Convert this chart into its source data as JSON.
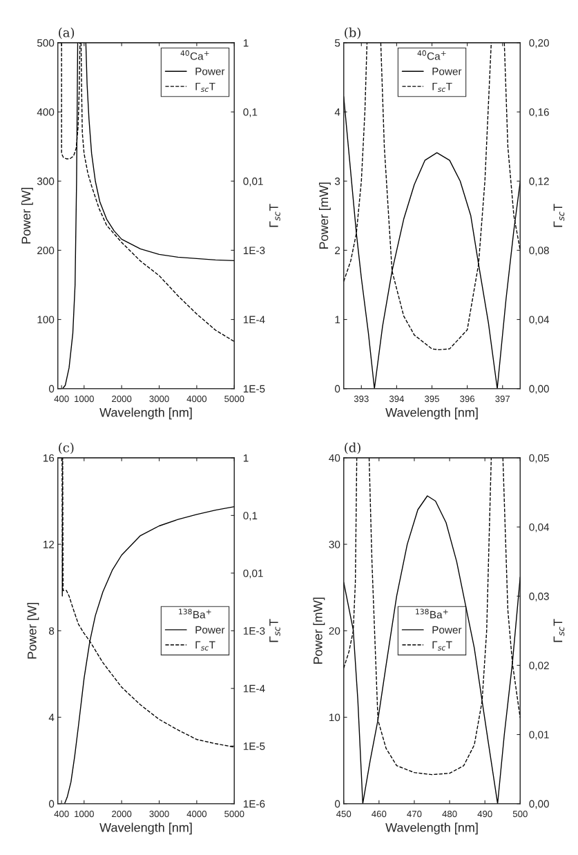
{
  "chart_data": [
    {
      "type": "line",
      "title": "(a)",
      "xlabel": "Wavelength [nm]",
      "ylabel": "Power [W]",
      "y2label": "Γ$_{sc}$T",
      "legend_title": "$^{40}$Ca$^{+}$",
      "legend": "top right",
      "log": "y2",
      "xlim": [
        300,
        5000
      ],
      "xticks": [
        400,
        1000,
        2000,
        3000,
        4000,
        5000
      ],
      "ylim": [
        0,
        500
      ],
      "yticks": [
        0,
        100,
        200,
        300,
        400,
        500
      ],
      "y2lim": [
        1e-05,
        1
      ],
      "y2ticks": [
        {
          "value": 1e-05,
          "label": "1E-5"
        },
        {
          "value": 0.0001,
          "label": "1E-4"
        },
        {
          "value": 0.001,
          "label": "1E-3"
        },
        {
          "value": 0.01,
          "label": "0,01"
        },
        {
          "value": 0.1,
          "label": "0,1"
        },
        1
      ],
      "series": [
        {
          "name": "Power",
          "color": "#000000",
          "line_style": "solid",
          "x": [
            430,
            500,
            600,
            700,
            760,
            800,
            830,
            900,
            1047,
            1080,
            1130,
            1200,
            1300,
            1420,
            1600,
            1800,
            2000,
            2500,
            3000,
            3500,
            4000,
            4500,
            5000
          ],
          "values": [
            0,
            5,
            30,
            80,
            150,
            300,
            500,
            null,
            500,
            440,
            390,
            340,
            300,
            270,
            245,
            228,
            216,
            202,
            194,
            190,
            188,
            186,
            185
          ]
        },
        {
          "name": "Γ$_{sc}$T",
          "color": "#000000",
          "line_style": "dashed",
          "axis": "y2",
          "x": [
            400,
            400,
            450,
            530,
            620,
            720,
            790,
            840,
            870,
            890,
            905,
            920,
            935,
            953,
            1000,
            1100,
            1200,
            1400,
            1600,
            2000,
            2500,
            3000,
            3500,
            4000,
            4500,
            5000
          ],
          "values": [
            1,
            0.025,
            0.022,
            0.021,
            0.021,
            0.023,
            0.03,
            0.06,
            0.2,
            1,
            null,
            1,
            0.2,
            0.05,
            0.025,
            0.013,
            0.0085,
            0.004,
            0.0023,
            0.0013,
            0.0007,
            0.00043,
            0.00022,
            0.00012,
            7e-05,
            4.8e-05
          ]
        }
      ]
    },
    {
      "type": "line",
      "title": "(b)",
      "xlabel": "Wavelength [nm]",
      "ylabel": "Power [mW]",
      "y2label": "Γ$_{sc}$T",
      "legend_title": "$^{40}$Ca$^{+}$",
      "legend": "top",
      "xlim": [
        392.5,
        397.5
      ],
      "xticks": [
        393,
        394,
        395,
        396,
        397
      ],
      "ylim": [
        0,
        5
      ],
      "yticks": [
        0,
        1,
        2,
        3,
        4,
        5
      ],
      "y2lim": [
        0,
        0.2
      ],
      "y2ticks": [
        {
          "value": 0,
          "label": "0,00"
        },
        {
          "value": 0.04,
          "label": "0,04"
        },
        {
          "value": 0.08,
          "label": "0,08"
        },
        {
          "value": 0.12,
          "label": "0,12"
        },
        {
          "value": 0.16,
          "label": "0,16"
        },
        {
          "value": 0.2,
          "label": "0,20"
        }
      ],
      "series": [
        {
          "name": "Power",
          "color": "#000000",
          "line_style": "solid",
          "x": [
            392.5,
            392.86,
            393.0,
            393.2,
            393.37,
            393.6,
            393.87,
            394.2,
            394.5,
            394.8,
            395.14,
            395.5,
            395.8,
            396.1,
            396.32,
            396.6,
            396.85,
            397.1,
            397.32,
            397.5
          ],
          "values": [
            4.22,
            2.24,
            1.6,
            0.8,
            0,
            0.9,
            1.7,
            2.45,
            2.95,
            3.3,
            3.41,
            3.3,
            3.0,
            2.5,
            1.8,
            0.95,
            0,
            1.3,
            2.29,
            2.99
          ]
        },
        {
          "name": "Γ$_{sc}$T",
          "color": "#000000",
          "line_style": "dashed",
          "axis": "y2",
          "x": [
            392.5,
            392.7,
            392.86,
            393.0,
            393.1,
            393.16,
            393.35,
            393.55,
            393.65,
            393.87,
            394.2,
            394.5,
            395.0,
            395.2,
            395.5,
            396.0,
            396.32,
            396.5,
            396.68,
            396.9,
            397.05,
            397.15,
            397.32,
            397.5
          ],
          "values": [
            0.062,
            0.074,
            0.09,
            0.12,
            0.16,
            0.2,
            null,
            0.2,
            0.14,
            0.068,
            0.042,
            0.031,
            0.023,
            0.0225,
            0.023,
            0.034,
            0.072,
            0.12,
            0.2,
            null,
            0.2,
            0.14,
            0.1,
            0.08
          ]
        }
      ]
    },
    {
      "type": "line",
      "title": "(c)",
      "xlabel": "Wavelength [nm]",
      "ylabel": "Power [W]",
      "y2label": "Γ$_{sc}$T",
      "legend_title": "$^{138}$Ba$^{+}$",
      "legend": "right",
      "log": "y2",
      "xlim": [
        300,
        5000
      ],
      "xticks": [
        400,
        1000,
        2000,
        3000,
        4000,
        5000
      ],
      "ylim": [
        0,
        16
      ],
      "yticks": [
        0,
        4,
        8,
        12,
        16
      ],
      "y2lim": [
        1e-06,
        1
      ],
      "y2ticks": [
        {
          "value": 1e-06,
          "label": "1E-6"
        },
        {
          "value": 1e-05,
          "label": "1E-5"
        },
        {
          "value": 0.0001,
          "label": "1E-4"
        },
        {
          "value": 0.001,
          "label": "1E-3"
        },
        {
          "value": 0.01,
          "label": "0,01"
        },
        {
          "value": 0.1,
          "label": "0,1"
        },
        1
      ],
      "series": [
        {
          "name": "Power",
          "color": "#000000",
          "line_style": "solid",
          "x": [
            480,
            550,
            650,
            750,
            850,
            1000,
            1152,
            1300,
            1500,
            1750,
            2000,
            2500,
            3000,
            3500,
            4000,
            4500,
            5000
          ],
          "values": [
            0,
            0.3,
            1.0,
            2.2,
            3.6,
            5.8,
            7.5,
            8.7,
            9.8,
            10.8,
            11.5,
            12.4,
            12.85,
            13.15,
            13.38,
            13.58,
            13.74
          ]
        },
        {
          "name": "Γ$_{sc}$T",
          "color": "#000000",
          "line_style": "dashed",
          "axis": "y2",
          "x": [
            415,
            420,
            430,
            440,
            470,
            530,
            600,
            700,
            850,
            1000,
            1152,
            1500,
            2000,
            2500,
            3000,
            3500,
            4000,
            4500,
            5000
          ],
          "values": [
            1,
            0.004,
            1,
            0.005,
            0.005,
            0.005,
            0.004,
            0.0025,
            0.0013,
            0.0009,
            0.00066,
            0.00028,
            0.000105,
            5.2e-05,
            2.9e-05,
            1.9e-05,
            1.3e-05,
            1.1e-05,
            9.6e-06
          ]
        }
      ]
    },
    {
      "type": "line",
      "title": "(d)",
      "xlabel": "Wavelength [nm]",
      "ylabel": "Power [mW]",
      "y2label": "Γ$_{sc}$T",
      "legend_title": "$^{138}$Ba$^{+}$",
      "legend": "center",
      "xlim": [
        450,
        500
      ],
      "xticks": [
        450,
        460,
        470,
        480,
        490,
        500
      ],
      "ylim": [
        0,
        40
      ],
      "yticks": [
        0,
        10,
        20,
        30,
        40
      ],
      "y2lim": [
        0,
        0.05
      ],
      "y2ticks": [
        {
          "value": 0,
          "label": "0,00"
        },
        {
          "value": 0.01,
          "label": "0,01"
        },
        {
          "value": 0.02,
          "label": "0,02"
        },
        {
          "value": 0.03,
          "label": "0,03"
        },
        {
          "value": 0.04,
          "label": "0,04"
        },
        {
          "value": 0.05,
          "label": "0,05"
        }
      ],
      "series": [
        {
          "name": "Power",
          "color": "#000000",
          "line_style": "solid",
          "x": [
            450,
            452.7,
            454,
            455.4,
            457.5,
            459.7,
            462,
            465,
            468,
            471,
            473.7,
            476,
            479,
            482,
            485,
            487,
            489.2,
            491,
            493.6,
            495.5,
            497.8,
            500
          ],
          "values": [
            25.6,
            20.1,
            12,
            0,
            5,
            9.7,
            16,
            24,
            30,
            34,
            35.6,
            35,
            32.5,
            28,
            22,
            18,
            11.9,
            7,
            0,
            8,
            16.3,
            26.2
          ]
        },
        {
          "name": "Γ$_{sc}$T",
          "color": "#000000",
          "line_style": "dashed",
          "axis": "y2",
          "x": [
            450,
            451.5,
            452.7,
            453.3,
            453.7,
            455.5,
            457.2,
            458,
            459.7,
            462,
            465,
            470,
            475,
            480,
            484,
            487,
            489.2,
            490.5,
            491.8,
            493.5,
            495.1,
            496.5,
            497.8,
            500
          ],
          "values": [
            0.0196,
            0.022,
            0.025,
            0.032,
            0.05,
            null,
            0.05,
            0.035,
            0.0121,
            0.008,
            0.0055,
            0.0045,
            0.0042,
            0.0044,
            0.0055,
            0.0085,
            0.0148,
            0.025,
            0.05,
            null,
            0.05,
            0.028,
            0.0203,
            0.0124
          ]
        }
      ]
    }
  ]
}
